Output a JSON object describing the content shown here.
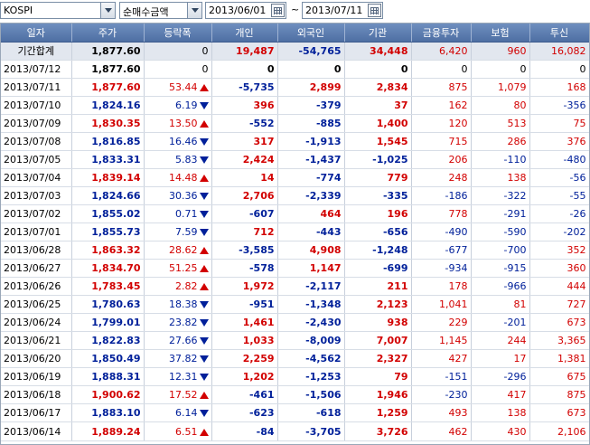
{
  "toolbar": {
    "market_select": "KOSPI",
    "type_select": "순매수금액",
    "start_date": "2013/06/01",
    "end_date": "2013/07/11",
    "range_separator": "~"
  },
  "colors": {
    "up": "#d20000",
    "down": "#00209a",
    "header": "#5677ab"
  },
  "table": {
    "headers": [
      "일자",
      "주가",
      "등락폭",
      "개인",
      "외국인",
      "기관",
      "금융투자",
      "보험",
      "투신"
    ],
    "summary": {
      "date": "기간합계",
      "price": "1,877.60",
      "change": "0",
      "dir": "",
      "individual": "19,487",
      "foreign": "-54,765",
      "institution": "34,448",
      "financial": "6,420",
      "insurance": "960",
      "trust": "16,082"
    },
    "rows": [
      {
        "date": "2013/07/12",
        "price": "1,877.60",
        "change": "0",
        "dir": "",
        "individual": "0",
        "foreign": "0",
        "institution": "0",
        "financial": "0",
        "insurance": "0",
        "trust": "0"
      },
      {
        "date": "2013/07/11",
        "price": "1,877.60",
        "change": "53.44",
        "dir": "up",
        "individual": "-5,735",
        "foreign": "2,899",
        "institution": "2,834",
        "financial": "875",
        "insurance": "1,079",
        "trust": "168"
      },
      {
        "date": "2013/07/10",
        "price": "1,824.16",
        "change": "6.19",
        "dir": "dn",
        "individual": "396",
        "foreign": "-379",
        "institution": "37",
        "financial": "162",
        "insurance": "80",
        "trust": "-356"
      },
      {
        "date": "2013/07/09",
        "price": "1,830.35",
        "change": "13.50",
        "dir": "up",
        "individual": "-552",
        "foreign": "-885",
        "institution": "1,400",
        "financial": "120",
        "insurance": "513",
        "trust": "75"
      },
      {
        "date": "2013/07/08",
        "price": "1,816.85",
        "change": "16.46",
        "dir": "dn",
        "individual": "317",
        "foreign": "-1,913",
        "institution": "1,545",
        "financial": "715",
        "insurance": "286",
        "trust": "376"
      },
      {
        "date": "2013/07/05",
        "price": "1,833.31",
        "change": "5.83",
        "dir": "dn",
        "individual": "2,424",
        "foreign": "-1,437",
        "institution": "-1,025",
        "financial": "206",
        "insurance": "-110",
        "trust": "-480"
      },
      {
        "date": "2013/07/04",
        "price": "1,839.14",
        "change": "14.48",
        "dir": "up",
        "individual": "14",
        "foreign": "-774",
        "institution": "779",
        "financial": "248",
        "insurance": "138",
        "trust": "-56"
      },
      {
        "date": "2013/07/03",
        "price": "1,824.66",
        "change": "30.36",
        "dir": "dn",
        "individual": "2,706",
        "foreign": "-2,339",
        "institution": "-335",
        "financial": "-186",
        "insurance": "-322",
        "trust": "-55"
      },
      {
        "date": "2013/07/02",
        "price": "1,855.02",
        "change": "0.71",
        "dir": "dn",
        "individual": "-607",
        "foreign": "464",
        "institution": "196",
        "financial": "778",
        "insurance": "-291",
        "trust": "-26"
      },
      {
        "date": "2013/07/01",
        "price": "1,855.73",
        "change": "7.59",
        "dir": "dn",
        "individual": "712",
        "foreign": "-443",
        "institution": "-656",
        "financial": "-490",
        "insurance": "-590",
        "trust": "-202"
      },
      {
        "date": "2013/06/28",
        "price": "1,863.32",
        "change": "28.62",
        "dir": "up",
        "individual": "-3,585",
        "foreign": "4,908",
        "institution": "-1,248",
        "financial": "-677",
        "insurance": "-700",
        "trust": "352"
      },
      {
        "date": "2013/06/27",
        "price": "1,834.70",
        "change": "51.25",
        "dir": "up",
        "individual": "-578",
        "foreign": "1,147",
        "institution": "-699",
        "financial": "-934",
        "insurance": "-915",
        "trust": "360"
      },
      {
        "date": "2013/06/26",
        "price": "1,783.45",
        "change": "2.82",
        "dir": "up",
        "individual": "1,972",
        "foreign": "-2,117",
        "institution": "211",
        "financial": "178",
        "insurance": "-966",
        "trust": "444"
      },
      {
        "date": "2013/06/25",
        "price": "1,780.63",
        "change": "18.38",
        "dir": "dn",
        "individual": "-951",
        "foreign": "-1,348",
        "institution": "2,123",
        "financial": "1,041",
        "insurance": "81",
        "trust": "727"
      },
      {
        "date": "2013/06/24",
        "price": "1,799.01",
        "change": "23.82",
        "dir": "dn",
        "individual": "1,461",
        "foreign": "-2,430",
        "institution": "938",
        "financial": "229",
        "insurance": "-201",
        "trust": "673"
      },
      {
        "date": "2013/06/21",
        "price": "1,822.83",
        "change": "27.66",
        "dir": "dn",
        "individual": "1,033",
        "foreign": "-8,009",
        "institution": "7,007",
        "financial": "1,145",
        "insurance": "244",
        "trust": "3,365"
      },
      {
        "date": "2013/06/20",
        "price": "1,850.49",
        "change": "37.82",
        "dir": "dn",
        "individual": "2,259",
        "foreign": "-4,562",
        "institution": "2,327",
        "financial": "427",
        "insurance": "17",
        "trust": "1,381"
      },
      {
        "date": "2013/06/19",
        "price": "1,888.31",
        "change": "12.31",
        "dir": "dn",
        "individual": "1,202",
        "foreign": "-1,253",
        "institution": "79",
        "financial": "-151",
        "insurance": "-296",
        "trust": "675"
      },
      {
        "date": "2013/06/18",
        "price": "1,900.62",
        "change": "17.52",
        "dir": "up",
        "individual": "-461",
        "foreign": "-1,506",
        "institution": "1,946",
        "financial": "-230",
        "insurance": "417",
        "trust": "875"
      },
      {
        "date": "2013/06/17",
        "price": "1,883.10",
        "change": "6.14",
        "dir": "dn",
        "individual": "-623",
        "foreign": "-618",
        "institution": "1,259",
        "financial": "493",
        "insurance": "138",
        "trust": "673"
      },
      {
        "date": "2013/06/14",
        "price": "1,889.24",
        "change": "6.51",
        "dir": "up",
        "individual": "-84",
        "foreign": "-3,705",
        "institution": "3,726",
        "financial": "462",
        "insurance": "430",
        "trust": "2,106"
      }
    ]
  }
}
